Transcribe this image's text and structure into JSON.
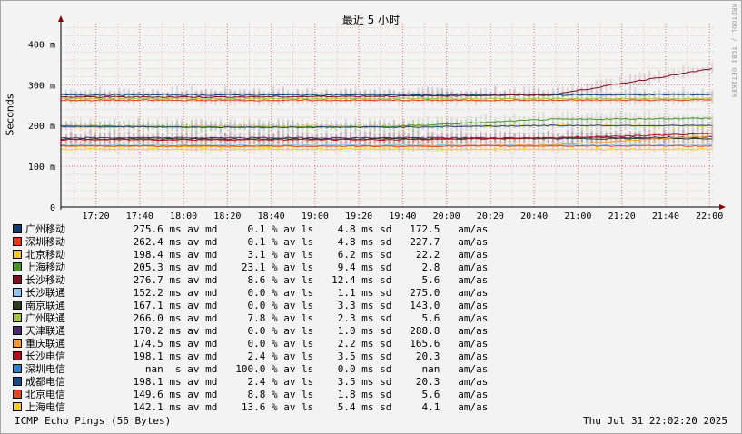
{
  "chart_data": {
    "type": "line",
    "title": "最近 5 小时",
    "ylabel": "Seconds",
    "watermark": "RRDTOOL / TOBI OETIKER",
    "ylim": [
      0,
      450
    ],
    "x_range": [
      "17:04",
      "22:02"
    ],
    "y_ticks": [
      "0",
      "100 m",
      "200 m",
      "300 m",
      "400 m"
    ],
    "x_ticks": [
      "17:20",
      "17:40",
      "18:00",
      "18:20",
      "18:40",
      "19:00",
      "19:20",
      "19:40",
      "20:00",
      "20:20",
      "20:40",
      "21:00",
      "21:20",
      "21:40",
      "22:00"
    ],
    "grid": true,
    "legend_position": "bottom",
    "series": [
      {
        "name": "广州移动",
        "color": "#0e3a7a",
        "avg": "275.6 ms av md",
        "loss": "0.1 % av ls",
        "sd": "4.8 ms sd",
        "am": "172.5",
        "unit": "am/as",
        "values_ms": [
          275,
          275,
          275,
          275,
          276
        ]
      },
      {
        "name": "深圳移动",
        "color": "#e33b17",
        "avg": "262.4 ms av md",
        "loss": "0.1 % av ls",
        "sd": "4.8 ms sd",
        "am": "227.7",
        "unit": "am/as",
        "values_ms": [
          262,
          262,
          262,
          262,
          263
        ]
      },
      {
        "name": "北京移动",
        "color": "#f2c522",
        "avg": "198.4 ms av md",
        "loss": "3.1 % av ls",
        "sd": "6.2 ms sd",
        "am": "22.2",
        "unit": "am/as",
        "values_ms": [
          195,
          198,
          197,
          200,
          199
        ]
      },
      {
        "name": "上海移动",
        "color": "#459524",
        "avg": "205.3 ms av md",
        "loss": "23.1 % av ls",
        "sd": "9.4 ms sd",
        "am": "2.8",
        "unit": "am/as",
        "values_ms": [
          200,
          196,
          197,
          215,
          218
        ]
      },
      {
        "name": "长沙移动",
        "color": "#7a0f24",
        "avg": "276.7 ms av md",
        "loss": "8.6 % av ls",
        "sd": "12.4 ms sd",
        "am": "5.6",
        "unit": "am/as",
        "values_ms": [
          270,
          270,
          272,
          275,
          340
        ]
      },
      {
        "name": "长沙联通",
        "color": "#8cc3f5",
        "avg": "152.2 ms av md",
        "loss": "0.0 % av ls",
        "sd": "1.1 ms sd",
        "am": "275.0",
        "unit": "am/as",
        "values_ms": [
          152,
          152,
          152,
          152,
          152
        ]
      },
      {
        "name": "南京联通",
        "color": "#2a3d1a",
        "avg": "167.1 ms av md",
        "loss": "0.0 % av ls",
        "sd": "3.3 ms sd",
        "am": "143.0",
        "unit": "am/as",
        "values_ms": [
          167,
          167,
          167,
          168,
          168
        ]
      },
      {
        "name": "广州联通",
        "color": "#a6c63a",
        "avg": "266.0 ms av md",
        "loss": "7.8 % av ls",
        "sd": "2.3 ms sd",
        "am": "5.6",
        "unit": "am/as",
        "values_ms": [
          266,
          266,
          266,
          266,
          266
        ]
      },
      {
        "name": "天津联通",
        "color": "#4a2a6e",
        "avg": "170.2 ms av md",
        "loss": "0.0 % av ls",
        "sd": "1.0 ms sd",
        "am": "288.8",
        "unit": "am/as",
        "values_ms": [
          170,
          170,
          170,
          170,
          172
        ]
      },
      {
        "name": "重庆联通",
        "color": "#f79a2a",
        "avg": "174.5 ms av md",
        "loss": "0.0 % av ls",
        "sd": "2.2 ms sd",
        "am": "165.6",
        "unit": "am/as",
        "values_ms": [
          150,
          148,
          150,
          152,
          175
        ]
      },
      {
        "name": "长沙电信",
        "color": "#b0101a",
        "avg": "198.1 ms av md",
        "loss": "2.4 % av ls",
        "sd": "3.5 ms sd",
        "am": "20.3",
        "unit": "am/as",
        "values_ms": [
          165,
          165,
          165,
          170,
          180
        ]
      },
      {
        "name": "深圳电信",
        "color": "#2b7fd0",
        "avg": "nan  s av md",
        "loss": "100.0 % av ls",
        "sd": "0.0 ms sd",
        "am": "nan",
        "unit": "am/as",
        "values_ms": []
      },
      {
        "name": "成都电信",
        "color": "#1a4a80",
        "avg": "198.1 ms av md",
        "loss": "2.4 % av ls",
        "sd": "3.5 ms sd",
        "am": "20.3",
        "unit": "am/as",
        "values_ms": [
          198,
          196,
          196,
          200,
          200
        ]
      },
      {
        "name": "北京电信",
        "color": "#e8451c",
        "avg": "149.6 ms av md",
        "loss": "8.8 % av ls",
        "sd": "1.8 ms sd",
        "am": "5.6",
        "unit": "am/as",
        "values_ms": [
          150,
          150,
          149,
          150,
          150
        ]
      },
      {
        "name": "上海电信",
        "color": "#f5d020",
        "avg": "142.1 ms av md",
        "loss": "13.6 % av ls",
        "sd": "5.4 ms sd",
        "am": "4.1",
        "unit": "am/as",
        "values_ms": [
          142,
          142,
          142,
          142,
          142
        ]
      }
    ]
  },
  "footer": {
    "left": "ICMP Echo Pings (56 Bytes)",
    "right": "Thu Jul 31 22:02:20 2025"
  }
}
